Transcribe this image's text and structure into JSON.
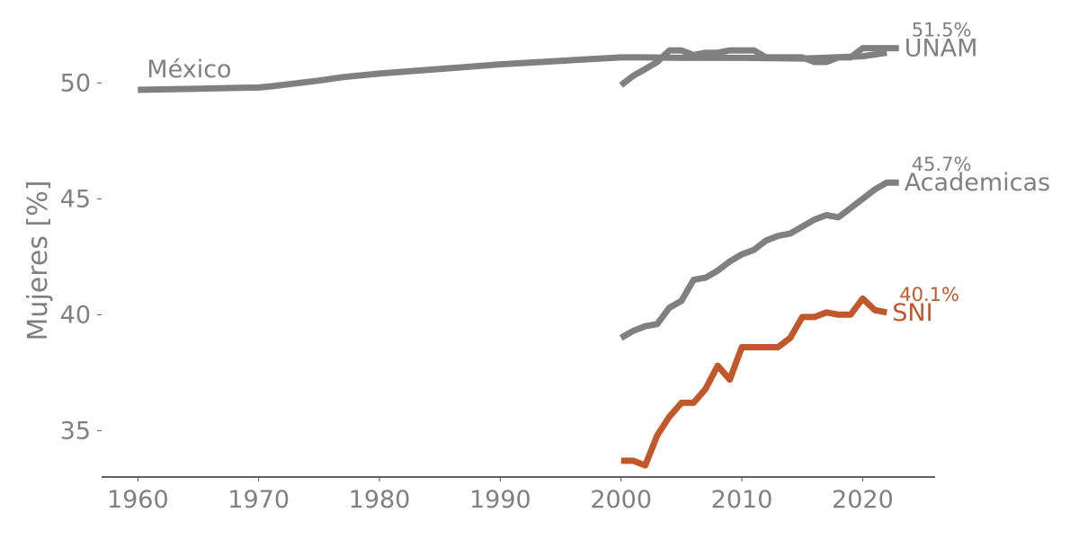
{
  "chart_data": {
    "type": "line",
    "title": "",
    "xlabel": "",
    "ylabel": "Mujeres [%]",
    "xlim": [
      1957,
      2026
    ],
    "ylim": [
      33,
      52.8
    ],
    "xticks": [
      1960,
      1970,
      1980,
      1990,
      2000,
      2010,
      2020
    ],
    "yticks": [
      35,
      40,
      45,
      50
    ],
    "grid": false,
    "colors": {
      "gray": "#808080",
      "sni": "#C0582A",
      "axis": "#000000"
    },
    "series": [
      {
        "name": "México",
        "color": "#808080",
        "x": [
          1960,
          1965,
          1970,
          1971,
          1975,
          1977,
          1980,
          1985,
          1990,
          1995,
          2000,
          2002,
          2005,
          2010,
          2015,
          2020,
          2022
        ],
        "y": [
          49.7,
          49.75,
          49.8,
          49.85,
          50.1,
          50.25,
          50.4,
          50.6,
          50.8,
          50.95,
          51.1,
          51.1,
          51.08,
          51.08,
          51.05,
          51.15,
          51.3
        ]
      },
      {
        "name": "UNAM",
        "end_label": "51.5%",
        "color": "#808080",
        "x": [
          2000,
          2001,
          2002,
          2003,
          2004,
          2005,
          2006,
          2007,
          2008,
          2009,
          2010,
          2011,
          2012,
          2013,
          2014,
          2015,
          2016,
          2017,
          2018,
          2019,
          2020,
          2021,
          2022,
          2023
        ],
        "y": [
          49.9,
          50.3,
          50.6,
          50.9,
          51.4,
          51.4,
          51.2,
          51.3,
          51.3,
          51.4,
          51.4,
          51.4,
          51.1,
          51.1,
          51.1,
          51.1,
          50.9,
          50.9,
          51.1,
          51.1,
          51.5,
          51.5,
          51.5,
          51.5
        ]
      },
      {
        "name": "Academicas",
        "end_label": "45.7%",
        "color": "#808080",
        "x": [
          2000,
          2001,
          2002,
          2003,
          2004,
          2005,
          2006,
          2007,
          2008,
          2009,
          2010,
          2011,
          2012,
          2013,
          2014,
          2015,
          2016,
          2017,
          2018,
          2019,
          2020,
          2021,
          2022,
          2023
        ],
        "y": [
          39.0,
          39.3,
          39.5,
          39.6,
          40.3,
          40.6,
          41.5,
          41.6,
          41.9,
          42.3,
          42.6,
          42.8,
          43.2,
          43.4,
          43.5,
          43.8,
          44.1,
          44.3,
          44.2,
          44.6,
          45.0,
          45.4,
          45.7,
          45.7
        ]
      },
      {
        "name": "SNI",
        "end_label": "40.1%",
        "color": "#C0582A",
        "x": [
          2000,
          2001,
          2002,
          2003,
          2004,
          2005,
          2006,
          2007,
          2008,
          2009,
          2010,
          2011,
          2012,
          2013,
          2014,
          2015,
          2016,
          2017,
          2018,
          2019,
          2020,
          2021,
          2022
        ],
        "y": [
          33.7,
          33.7,
          33.5,
          34.8,
          35.6,
          36.2,
          36.2,
          36.8,
          37.8,
          37.2,
          38.6,
          38.6,
          38.6,
          38.6,
          39.0,
          39.9,
          39.9,
          40.1,
          40.0,
          40.0,
          40.7,
          40.2,
          40.1
        ]
      }
    ]
  }
}
